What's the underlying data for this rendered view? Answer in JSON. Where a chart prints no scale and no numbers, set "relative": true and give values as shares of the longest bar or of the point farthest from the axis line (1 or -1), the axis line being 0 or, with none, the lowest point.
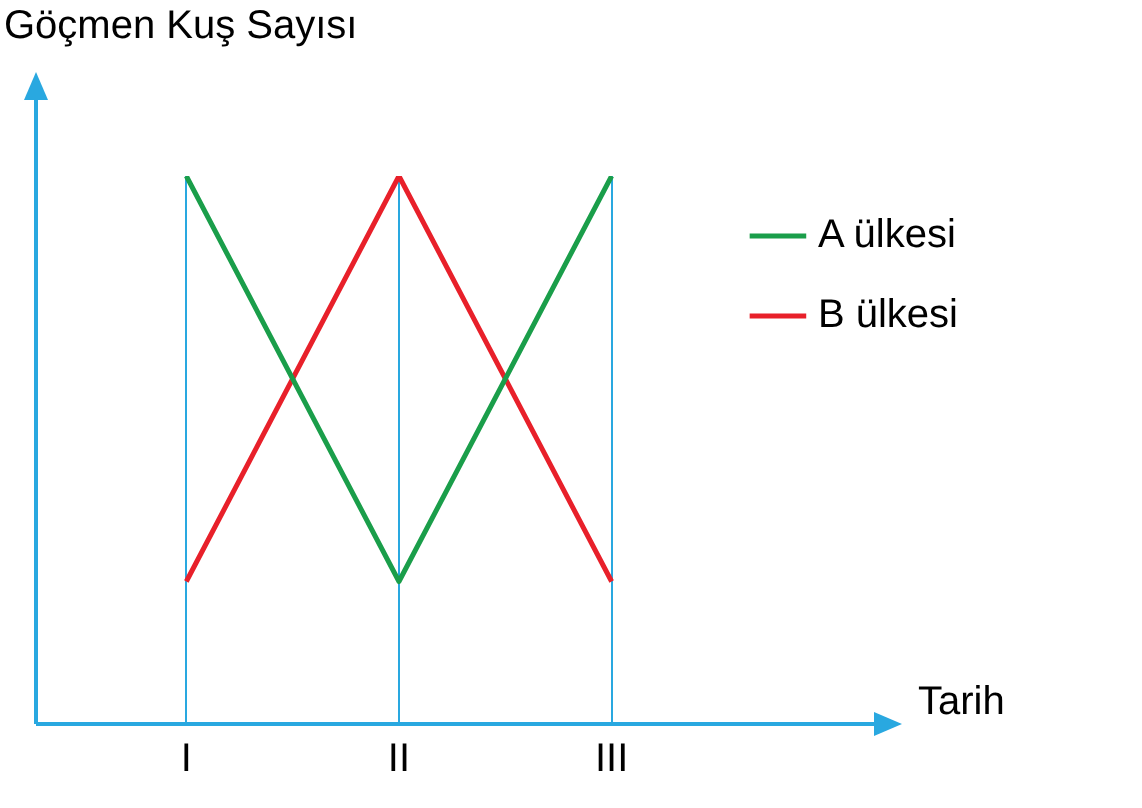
{
  "chart_data": {
    "type": "line",
    "ylabel": "Göçmen Kuş Sayısı",
    "xlabel": "Tarih",
    "categories": [
      "I",
      "II",
      "III"
    ],
    "relative": true,
    "grid": "x",
    "legend": "right",
    "marker": "none",
    "line_style": "solid",
    "series": [
      {
        "name": "A ülkesi",
        "color": "#1a9e4a",
        "values": [
          1,
          0.26,
          1
        ]
      },
      {
        "name": "B ülkesi",
        "color": "#e8202a",
        "values": [
          0.26,
          1,
          0.26
        ]
      }
    ]
  }
}
